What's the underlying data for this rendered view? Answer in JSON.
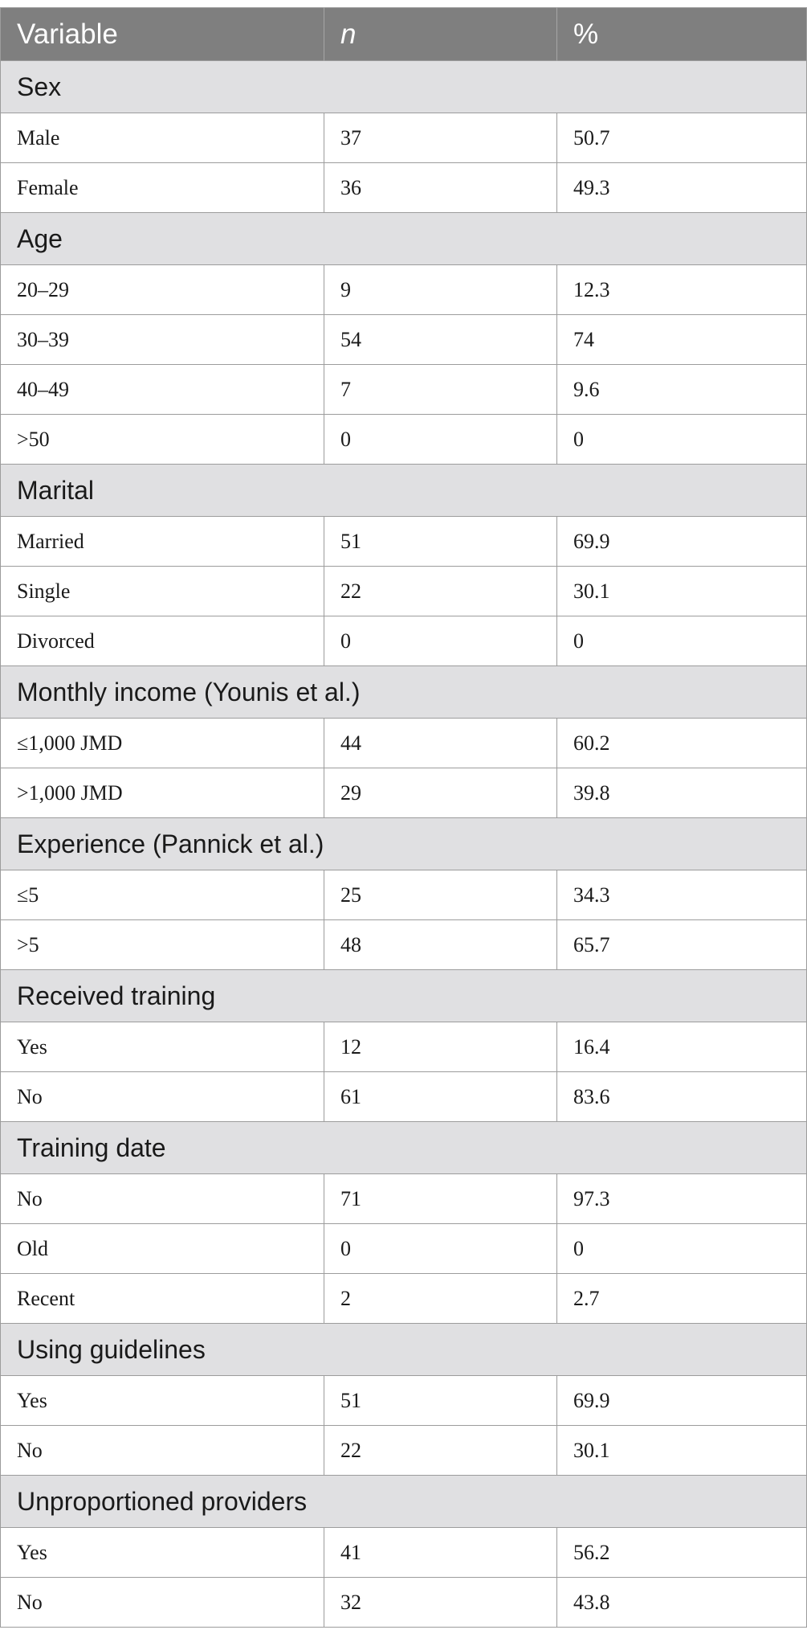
{
  "table": {
    "headers": [
      "Variable",
      "n",
      "%"
    ],
    "groups": [
      {
        "label": "Sex",
        "rows": [
          {
            "variable": "Male",
            "n": "37",
            "pct": "50.7"
          },
          {
            "variable": "Female",
            "n": "36",
            "pct": "49.3"
          }
        ]
      },
      {
        "label": "Age",
        "rows": [
          {
            "variable": "20–29",
            "n": "9",
            "pct": "12.3"
          },
          {
            "variable": "30–39",
            "n": "54",
            "pct": "74"
          },
          {
            "variable": "40–49",
            "n": "7",
            "pct": "9.6"
          },
          {
            "variable": ">50",
            "n": "0",
            "pct": "0"
          }
        ]
      },
      {
        "label": "Marital",
        "rows": [
          {
            "variable": "Married",
            "n": "51",
            "pct": "69.9"
          },
          {
            "variable": "Single",
            "n": "22",
            "pct": "30.1"
          },
          {
            "variable": "Divorced",
            "n": "0",
            "pct": "0"
          }
        ]
      },
      {
        "label": "Monthly income (Younis et al.)",
        "rows": [
          {
            "variable": "≤1,000 JMD",
            "n": "44",
            "pct": "60.2"
          },
          {
            "variable": ">1,000 JMD",
            "n": "29",
            "pct": "39.8"
          }
        ]
      },
      {
        "label": "Experience (Pannick et al.)",
        "rows": [
          {
            "variable": "≤5",
            "n": "25",
            "pct": "34.3"
          },
          {
            "variable": ">5",
            "n": "48",
            "pct": "65.7"
          }
        ]
      },
      {
        "label": "Received training",
        "rows": [
          {
            "variable": "Yes",
            "n": "12",
            "pct": "16.4"
          },
          {
            "variable": "No",
            "n": "61",
            "pct": "83.6"
          }
        ]
      },
      {
        "label": "Training date",
        "rows": [
          {
            "variable": "No",
            "n": "71",
            "pct": "97.3"
          },
          {
            "variable": "Old",
            "n": "0",
            "pct": "0"
          },
          {
            "variable": "Recent",
            "n": "2",
            "pct": "2.7"
          }
        ]
      },
      {
        "label": "Using guidelines",
        "rows": [
          {
            "variable": "Yes",
            "n": "51",
            "pct": "69.9"
          },
          {
            "variable": "No",
            "n": "22",
            "pct": "30.1"
          }
        ]
      },
      {
        "label": "Unproportioned providers",
        "rows": [
          {
            "variable": "Yes",
            "n": "41",
            "pct": "56.2"
          },
          {
            "variable": "No",
            "n": "32",
            "pct": "43.8"
          }
        ]
      }
    ]
  }
}
